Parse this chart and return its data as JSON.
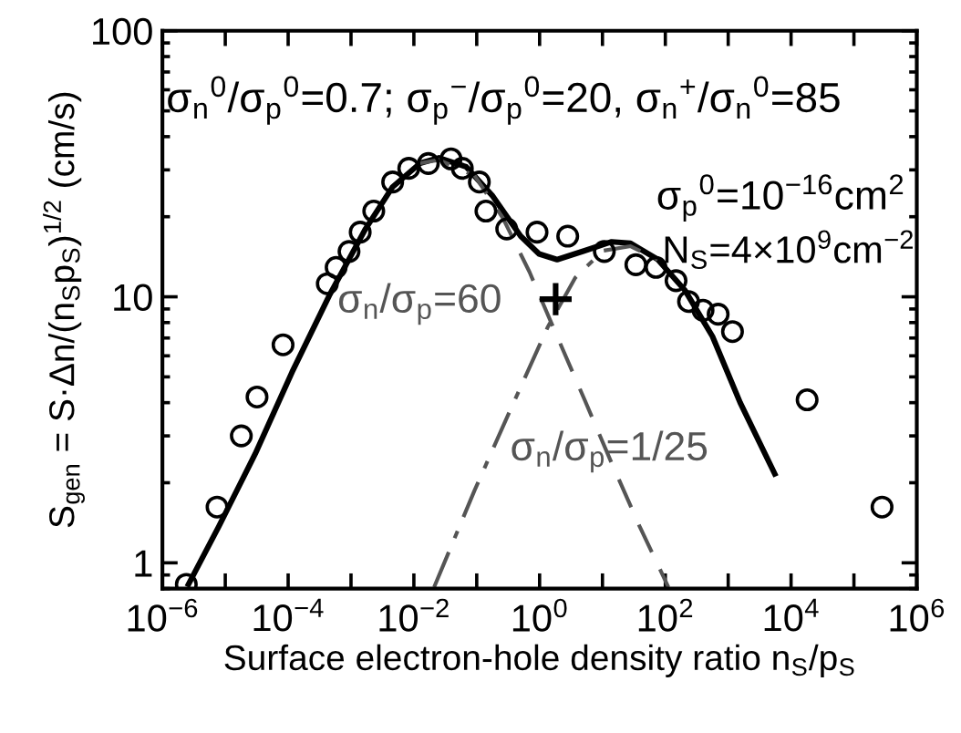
{
  "chart_data": {
    "type": "line",
    "xlabel": "Surface electron-hole density ratio n$_{S}$/p$_{S}$",
    "ylabel": "S$_{gen}$ = S·Δn/(n$_{S}$p$_{S}$)$^{1/2}$ (cm/s)",
    "log": "xy",
    "xlim": [
      1e-06,
      1000000.0
    ],
    "ylim": [
      0.8,
      100
    ],
    "xticks": [
      {
        "value": 1e-06,
        "label": "10$^{−6}$"
      },
      {
        "value": 1e-05,
        "label": null
      },
      {
        "value": 0.0001,
        "label": "10$^{−4}$"
      },
      {
        "value": 0.001,
        "label": null
      },
      {
        "value": 0.01,
        "label": "10$^{−2}$"
      },
      {
        "value": 0.1,
        "label": null
      },
      {
        "value": 1,
        "label": "10$^{0}$"
      },
      {
        "value": 10,
        "label": null
      },
      {
        "value": 100,
        "label": "10$^{2}$"
      },
      {
        "value": 1000,
        "label": null
      },
      {
        "value": 10000,
        "label": "10$^{4}$"
      },
      {
        "value": 100000,
        "label": null
      },
      {
        "value": 1000000,
        "label": "10$^{6}$"
      }
    ],
    "yticks": [
      1,
      10,
      100
    ],
    "grid": false,
    "series": [
      {
        "type": "scatter",
        "marker": "circle",
        "color": "#000000",
        "x": [
          2.4e-06,
          7.4e-06,
          1.8e-05,
          3.2e-05,
          8.3e-05,
          0.00042,
          0.00058,
          0.00093,
          0.0014,
          0.0023,
          0.0046,
          0.0083,
          0.017,
          0.039,
          0.059,
          0.11,
          0.14,
          0.3,
          0.91,
          2.8,
          10.7,
          34,
          71,
          148,
          234,
          398,
          692,
          1170,
          18000,
          280000
        ],
        "values": [
          0.83,
          1.62,
          3.0,
          4.2,
          6.6,
          11.2,
          12.9,
          14.8,
          17.5,
          21,
          27,
          30.4,
          31.7,
          33,
          30.4,
          27,
          21,
          18,
          17.5,
          16.9,
          14.8,
          13.2,
          12.9,
          11.5,
          9.6,
          8.9,
          8.6,
          7.4,
          4.1,
          1.62
        ]
      },
      {
        "line_style": "solid",
        "color": "#000000",
        "x": [
          2.6e-06,
          7.9e-06,
          3e-05,
          0.000115,
          0.00045,
          0.0017,
          0.0046,
          0.0126,
          0.025,
          0.068,
          0.18,
          0.5,
          0.98,
          1.9,
          5.2,
          14,
          28,
          76,
          204,
          562,
          1550,
          5500
        ],
        "values": [
          0.83,
          1.37,
          2.57,
          5.2,
          10.1,
          18.0,
          25.9,
          31.8,
          33.3,
          30.8,
          23.9,
          16.9,
          14.5,
          13.8,
          14.9,
          16.1,
          15.9,
          13.8,
          10.6,
          7.1,
          4.0,
          2.16
        ]
      },
      {
        "line_style": "dashed",
        "color": "#555555",
        "x": [
          0.0126,
          0.025,
          0.093,
          0.26,
          0.69,
          1.9,
          5.2,
          14,
          39,
          112
        ],
        "values": [
          31.8,
          32.7,
          28.5,
          19.8,
          12.4,
          7.1,
          4.1,
          2.37,
          1.37,
          0.81
        ]
      },
      {
        "line_style": "dashdot",
        "color": "#555555",
        "x": [
          0.021,
          0.093,
          0.35,
          1.35,
          3.7,
          10.2,
          28,
          76
        ],
        "values": [
          0.81,
          1.88,
          3.8,
          7.7,
          11.8,
          14.9,
          15.5,
          13.8
        ]
      },
      {
        "type": "scatter",
        "marker": "cross",
        "color": "#000000",
        "x": [
          1.8
        ],
        "values": [
          9.8
        ]
      }
    ],
    "annotations": [
      "σ$_{n}$$^{0}$/σ$_{p}$$^{0}$=0.7; σ$_{p}$$^{−}$/σ$_{p}$$^{0}$=20, σ$_{n}$$^{+}$/σ$_{n}$$^{0}$=85",
      "σ$_{p}$$^{0}$=10$^{−16}$cm$^{2}$",
      "N$_{S}$=4×10$^{9}$cm$^{−2}$",
      "σ$_{n}$/σ$_{p}$=60",
      "σ$_{n}$/σ$_{p}$=1/25"
    ]
  }
}
